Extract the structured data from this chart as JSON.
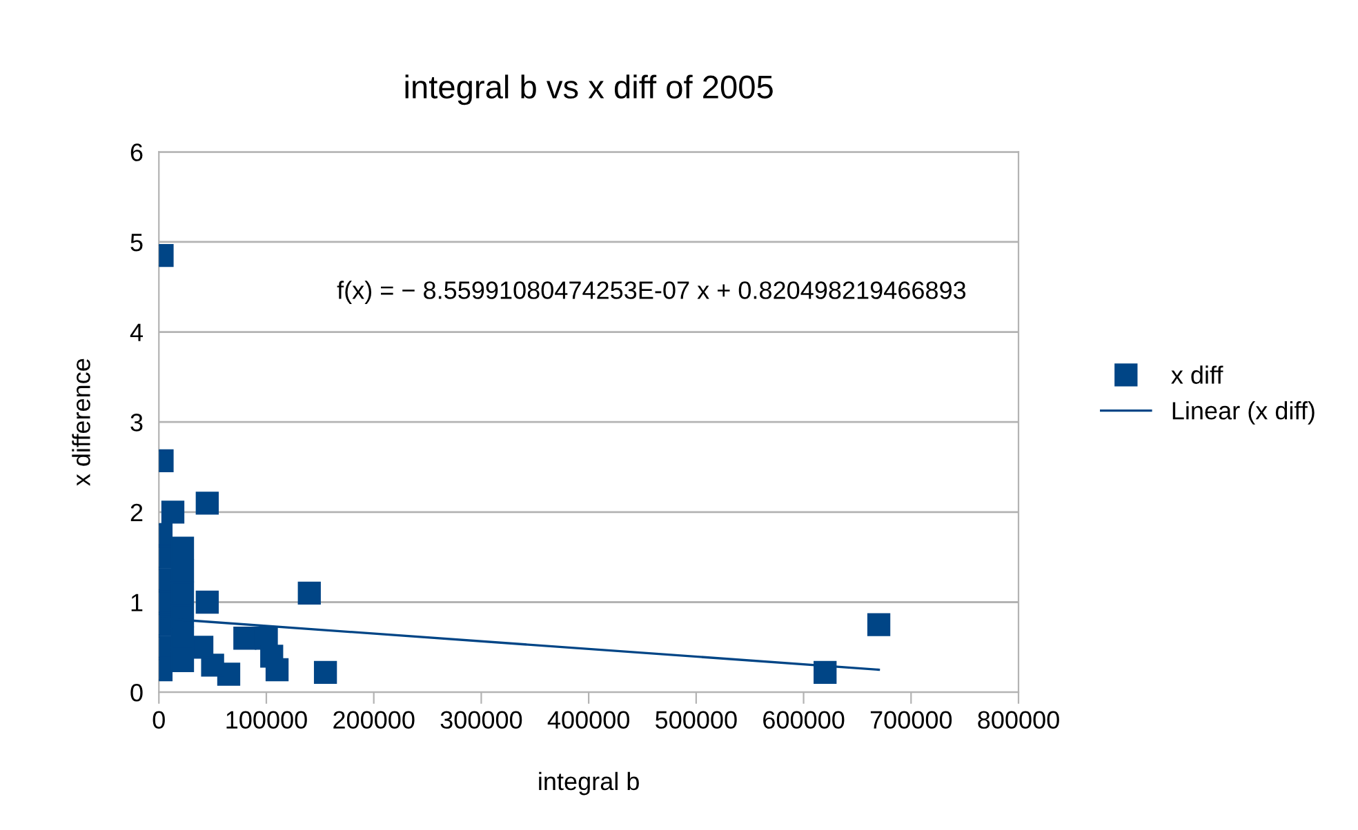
{
  "chart_data": {
    "type": "scatter",
    "title": "integral b vs x diff of 2005",
    "xlabel": "integral b",
    "ylabel": "x difference",
    "annotations": [
      "f(x) = − 8.55991080474253E-07 x + 0.820498219466893"
    ],
    "series": [
      {
        "name": "x diff",
        "color": "#004586",
        "marker": "square",
        "x": [
          3000,
          3000,
          45000,
          13000,
          140000,
          45000,
          80000,
          100000,
          105000,
          110000,
          155000,
          620000,
          670000,
          65000,
          50000,
          40000,
          2000,
          2000,
          2000,
          2000,
          2000,
          2000,
          2000,
          22000,
          22000,
          22000,
          22000,
          22000,
          22000
        ],
        "values": [
          4.85,
          2.57,
          2.1,
          2.0,
          1.1,
          1.0,
          0.6,
          0.6,
          0.4,
          0.25,
          0.22,
          0.22,
          0.75,
          0.2,
          0.3,
          0.5,
          1.75,
          1.5,
          1.25,
          1.0,
          0.75,
          0.5,
          0.25,
          1.6,
          1.35,
          1.1,
          0.85,
          0.6,
          0.35
        ]
      },
      {
        "name": "Linear (x diff)",
        "type": "line",
        "color": "#004586",
        "marker": "none",
        "x": [
          2000,
          670000
        ],
        "values": [
          0.82,
          0.25
        ]
      }
    ],
    "xlim": [
      0,
      800000
    ],
    "xticks": [
      0,
      100000,
      200000,
      300000,
      400000,
      500000,
      600000,
      700000,
      800000
    ],
    "ylim": [
      0,
      6
    ],
    "yticks": [
      0,
      1,
      2,
      3,
      4,
      5,
      6
    ],
    "grid": "y",
    "legend": "right"
  }
}
